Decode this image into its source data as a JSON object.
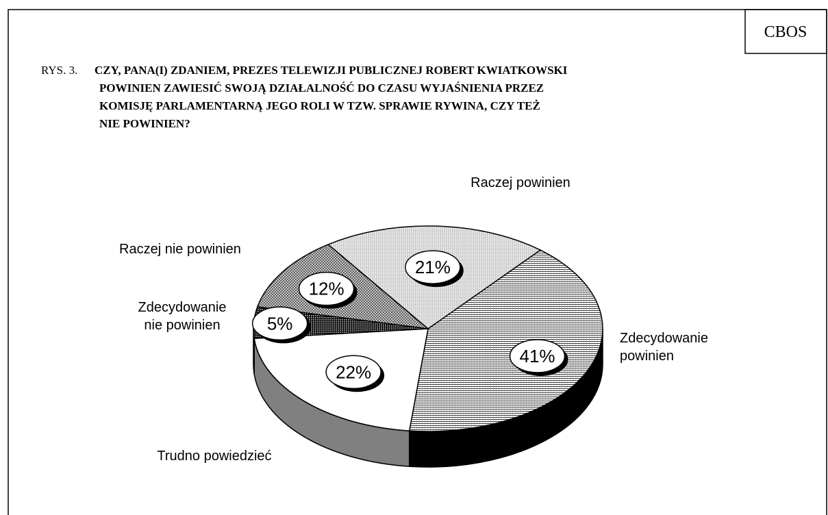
{
  "source": "CBOS",
  "chart_data": {
    "type": "pie3d",
    "figure_label": "RYS. 3.",
    "title": [
      "CZY, PANA(I) ZDANIEM, PREZES TELEWIZJI PUBLICZNEJ ROBERT KWIATKOWSKI",
      "POWINIEN ZAWIESIĆ SWOJĄ DZIAŁALNOŚĆ DO CZASU WYJAŚNIENIA PRZEZ",
      "KOMISJĘ PARLAMENTARNĄ JEGO ROLI W TZW. SPRAWIE RYWINA, CZY TEŻ",
      "NIE  POWINIEN?"
    ],
    "categories": [
      "Zdecydowanie powinien",
      "Trudno powiedzieć",
      "Zdecydowanie nie powinien",
      "Raczej nie powinien",
      "Raczej powinien"
    ],
    "values": [
      41,
      22,
      5,
      12,
      21
    ],
    "value_labels": [
      "41%",
      "22%",
      "5%",
      "12%",
      "21%"
    ],
    "colors": [
      "#000000",
      "#808080",
      "#404040",
      "#606060",
      "#707070"
    ]
  }
}
